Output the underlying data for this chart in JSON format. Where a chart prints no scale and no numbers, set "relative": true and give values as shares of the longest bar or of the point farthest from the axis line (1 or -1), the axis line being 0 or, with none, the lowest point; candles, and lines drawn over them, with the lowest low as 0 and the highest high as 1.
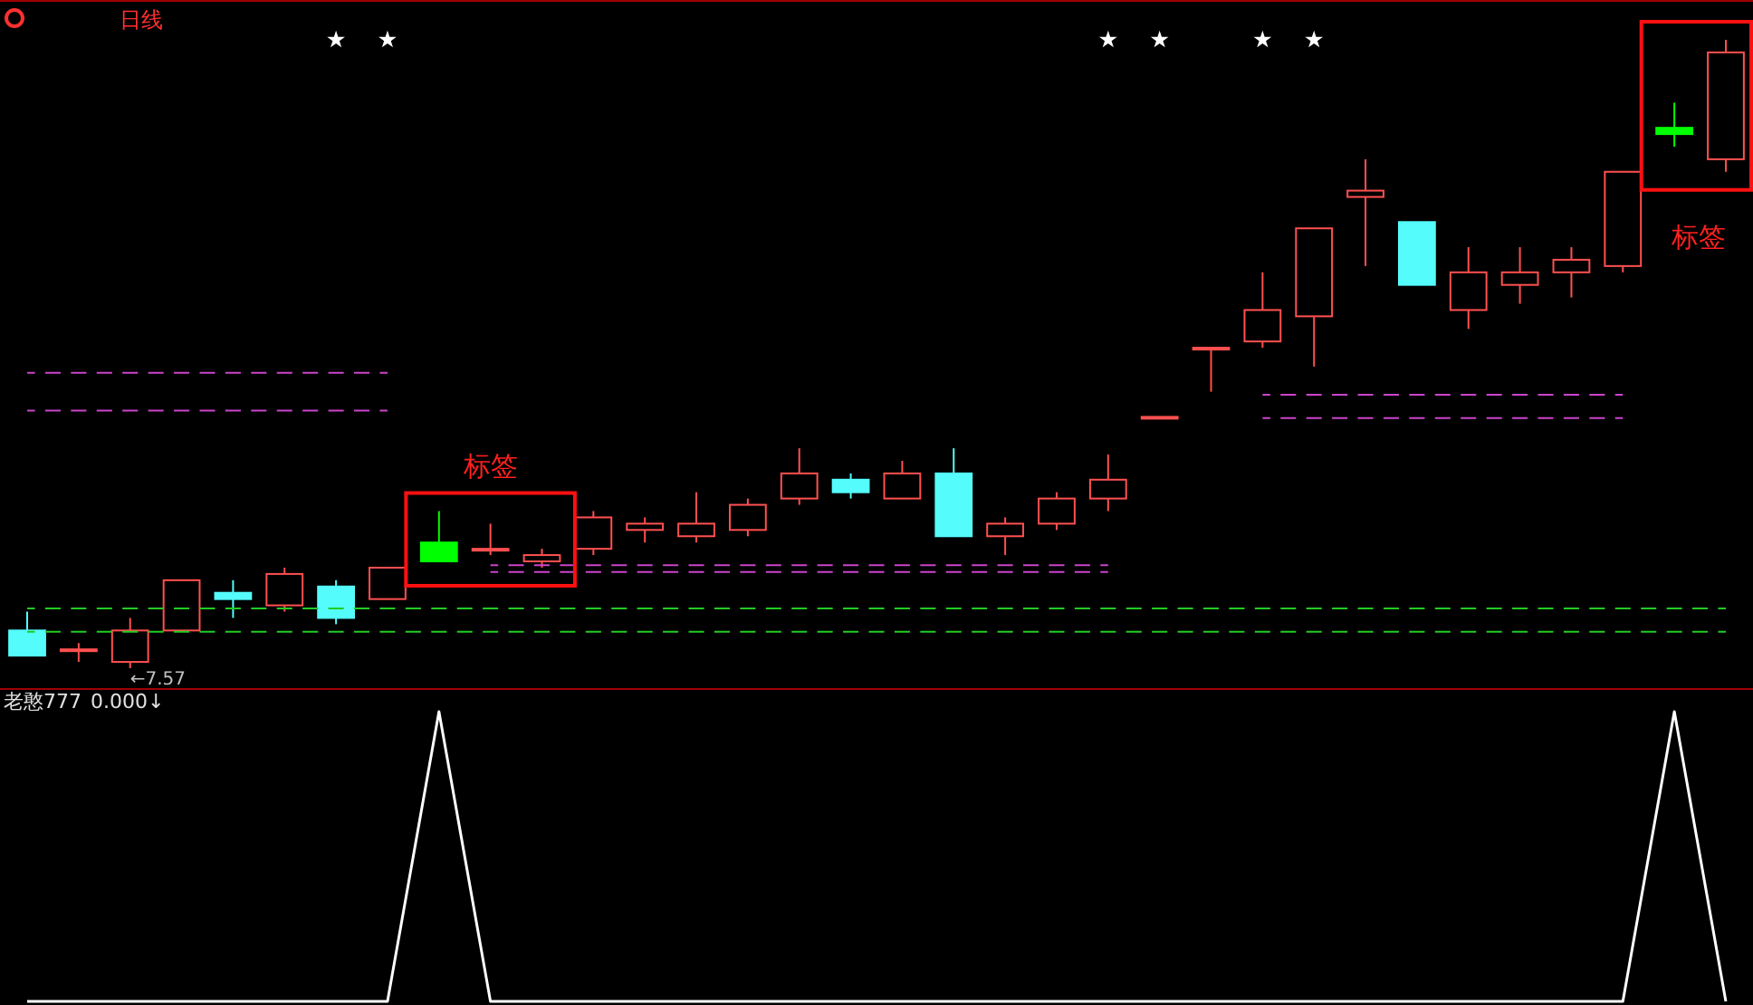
{
  "chart_data": [
    {
      "type": "candlestick",
      "title": "日线",
      "relative": true,
      "categories": [
        null,
        null,
        null,
        null,
        null,
        null,
        null,
        null,
        null,
        null,
        null,
        null,
        null,
        null,
        null,
        null,
        null,
        null,
        null,
        null,
        null,
        null,
        null,
        null,
        null,
        null,
        null,
        null,
        null,
        null,
        null,
        null,
        null,
        null
      ],
      "ohlc": [
        [
          0.06,
          0.09,
          0.02,
          0.02
        ],
        [
          0.03,
          0.04,
          0.01,
          0.03
        ],
        [
          0.01,
          0.08,
          0,
          0.06
        ],
        [
          0.06,
          0.14,
          0.06,
          0.14
        ],
        [
          0.12,
          0.14,
          0.08,
          0.11
        ],
        [
          0.1,
          0.16,
          0.09,
          0.15
        ],
        [
          0.13,
          0.14,
          0.07,
          0.08
        ],
        [
          0.11,
          0.16,
          0.11,
          0.16
        ],
        [
          0.2,
          0.25,
          0.17,
          0.17
        ],
        [
          0.19,
          0.23,
          0.18,
          0.19
        ],
        [
          0.17,
          0.19,
          0.16,
          0.18
        ],
        [
          0.19,
          0.25,
          0.18,
          0.24
        ],
        [
          0.22,
          0.24,
          0.2,
          0.23
        ],
        [
          0.21,
          0.28,
          0.2,
          0.23
        ],
        [
          0.22,
          0.27,
          0.21,
          0.26
        ],
        [
          0.27,
          0.35,
          0.26,
          0.31
        ],
        [
          0.3,
          0.31,
          0.27,
          0.28
        ],
        [
          0.27,
          0.33,
          0.27,
          0.31
        ],
        [
          0.31,
          0.35,
          0.21,
          0.21
        ],
        [
          0.21,
          0.24,
          0.18,
          0.23
        ],
        [
          0.23,
          0.28,
          0.22,
          0.27
        ],
        [
          0.27,
          0.34,
          0.25,
          0.3
        ],
        [
          0.4,
          0.4,
          0.4,
          0.4
        ],
        [
          0.51,
          0.51,
          0.44,
          0.51
        ],
        [
          0.52,
          0.63,
          0.51,
          0.57
        ],
        [
          0.56,
          0.7,
          0.48,
          0.7
        ],
        [
          0.75,
          0.81,
          0.64,
          0.76
        ],
        [
          0.71,
          0.71,
          0.61,
          0.61
        ],
        [
          0.57,
          0.67,
          0.54,
          0.63
        ],
        [
          0.61,
          0.67,
          0.58,
          0.63
        ],
        [
          0.63,
          0.67,
          0.59,
          0.65
        ],
        [
          0.64,
          0.79,
          0.63,
          0.79
        ],
        [
          0.86,
          0.9,
          0.83,
          0.85
        ],
        [
          0.81,
          1,
          0.79,
          0.98
        ]
      ],
      "colors": [
        "#54fcfc",
        "#ff5050",
        "#ff5050",
        "#ff5050",
        "#54fcfc",
        "#ff5050",
        "#54fcfc",
        "#ff5050",
        "#00ff00",
        "#ff5050",
        "#ff5050",
        "#ff5050",
        "#ff5050",
        "#ff5050",
        "#ff5050",
        "#ff5050",
        "#54fcfc",
        "#ff5050",
        "#54fcfc",
        "#ff5050",
        "#ff5050",
        "#ff5050",
        "#ff5050",
        "#ff5050",
        "#ff5050",
        "#ff5050",
        "#ff5050",
        "#54fcfc",
        "#ff5050",
        "#ff5050",
        "#ff5050",
        "#ff5050",
        "#00ff00",
        "#ff5050"
      ],
      "series": [
        {
          "type": "line",
          "color": "#22cc22",
          "line_style": "dashed",
          "values": [
            0.095,
            0.095,
            0.095,
            0.095,
            0.095,
            0.095,
            0.095,
            0.095,
            0.095,
            0.095,
            0.095,
            0.095,
            0.095,
            0.095,
            0.095,
            0.095,
            0.095,
            0.095,
            0.095,
            0.095,
            0.095,
            0.095,
            0.095,
            0.095,
            0.095,
            0.095,
            0.095,
            0.095,
            0.095,
            0.095,
            0.095,
            0.095,
            0.095,
            0.095
          ]
        },
        {
          "type": "line",
          "color": "#22cc22",
          "line_style": "dashed",
          "values": [
            0.058,
            0.058,
            0.058,
            0.058,
            0.058,
            0.058,
            0.058,
            0.058,
            0.058,
            0.058,
            0.058,
            0.058,
            0.058,
            0.058,
            0.058,
            0.058,
            0.058,
            0.058,
            0.058,
            0.058,
            0.058,
            0.058,
            0.058,
            0.058,
            0.058,
            0.058,
            0.058,
            0.058,
            0.058,
            0.058,
            0.058,
            0.058,
            0.058,
            0.058
          ]
        },
        {
          "type": "line",
          "color": "#cc44cc",
          "line_style": "dashed",
          "values": [
            0.47,
            0.47,
            0.47,
            0.47,
            0.47,
            0.47,
            0.47,
            0.47,
            null,
            null,
            null,
            null,
            null,
            null,
            null,
            null,
            null,
            null,
            null,
            null,
            null,
            null,
            null,
            null,
            null,
            null,
            null,
            null,
            null,
            null,
            null,
            null,
            null,
            null
          ]
        },
        {
          "type": "line",
          "color": "#cc44cc",
          "line_style": "dashed",
          "values": [
            0.41,
            0.41,
            0.41,
            0.41,
            0.41,
            0.41,
            0.41,
            0.41,
            null,
            null,
            null,
            null,
            null,
            null,
            null,
            null,
            null,
            null,
            null,
            null,
            null,
            null,
            null,
            null,
            null,
            null,
            null,
            null,
            null,
            null,
            null,
            null,
            null,
            null
          ]
        },
        {
          "type": "line",
          "color": "#cc44cc",
          "line_style": "dashed",
          "values": [
            null,
            null,
            null,
            null,
            null,
            null,
            null,
            null,
            null,
            0.164,
            0.164,
            0.164,
            0.164,
            0.164,
            0.164,
            0.164,
            0.164,
            0.164,
            0.164,
            0.164,
            0.164,
            0.164,
            null,
            null,
            null,
            null,
            null,
            null,
            null,
            null,
            null,
            null,
            null,
            null
          ]
        },
        {
          "type": "line",
          "color": "#cc44cc",
          "line_style": "dashed",
          "values": [
            null,
            null,
            null,
            null,
            null,
            null,
            null,
            null,
            null,
            0.153,
            0.153,
            0.153,
            0.153,
            0.153,
            0.153,
            0.153,
            0.153,
            0.153,
            0.153,
            0.153,
            0.153,
            0.153,
            null,
            null,
            null,
            null,
            null,
            null,
            null,
            null,
            null,
            null,
            null,
            null
          ]
        },
        {
          "type": "line",
          "color": "#cc44cc",
          "line_style": "dashed",
          "values": [
            null,
            null,
            null,
            null,
            null,
            null,
            null,
            null,
            null,
            null,
            null,
            null,
            null,
            null,
            null,
            null,
            null,
            null,
            null,
            null,
            null,
            null,
            null,
            null,
            0.435,
            0.435,
            0.435,
            0.435,
            0.435,
            0.435,
            0.435,
            0.435,
            null,
            null
          ]
        },
        {
          "type": "line",
          "color": "#cc44cc",
          "line_style": "dashed",
          "values": [
            null,
            null,
            null,
            null,
            null,
            null,
            null,
            null,
            null,
            null,
            null,
            null,
            null,
            null,
            null,
            null,
            null,
            null,
            null,
            null,
            null,
            null,
            null,
            null,
            0.398,
            0.398,
            0.398,
            0.398,
            0.398,
            0.398,
            0.398,
            0.398,
            null,
            null
          ]
        },
        {
          "type": "scatter",
          "color": "#ffffff",
          "marker": "star",
          "values": [
            null,
            null,
            null,
            null,
            null,
            null,
            1,
            1,
            null,
            null,
            null,
            null,
            null,
            null,
            null,
            null,
            null,
            null,
            null,
            null,
            null,
            1,
            1,
            null,
            1,
            1,
            null,
            null,
            null,
            null,
            null,
            null,
            null,
            null
          ]
        }
      ],
      "annotations": [
        "标签",
        "标签",
        "←7.57"
      ]
    },
    {
      "type": "line",
      "title": "老憨777",
      "relative": true,
      "categories": [
        null,
        null,
        null,
        null,
        null,
        null,
        null,
        null,
        null,
        null,
        null,
        null,
        null,
        null,
        null,
        null,
        null,
        null,
        null,
        null,
        null,
        null,
        null,
        null,
        null,
        null,
        null,
        null,
        null,
        null,
        null,
        null,
        null,
        null
      ],
      "series": [
        {
          "color": "#ffffff",
          "values": [
            0,
            0,
            0,
            0,
            0,
            0,
            0,
            0,
            1,
            0,
            0,
            0,
            0,
            0,
            0,
            0,
            0,
            0,
            0,
            0,
            0,
            0,
            0,
            0,
            0,
            0,
            0,
            0,
            0,
            0,
            0,
            0,
            1,
            0
          ]
        }
      ],
      "annotations": [
        "0.000↓"
      ]
    }
  ]
}
